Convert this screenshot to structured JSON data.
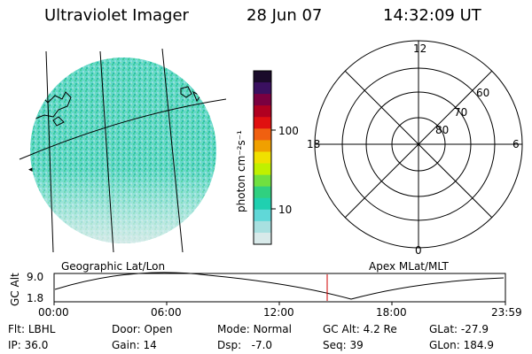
{
  "header": {
    "instrument": "Ultraviolet Imager",
    "date": "28 Jun 07",
    "time": "14:32:09 UT"
  },
  "colorbar": {
    "unit_label": "photon cm⁻²s⁻¹",
    "ticks": [
      "100",
      "10"
    ],
    "colors": [
      "#1a0a2a",
      "#3a1060",
      "#7a0040",
      "#b00020",
      "#e01010",
      "#f06010",
      "#f0a000",
      "#f0e000",
      "#c0f000",
      "#70e040",
      "#30d080",
      "#20d0b0",
      "#60d8d8",
      "#a8e0e0",
      "#d8eaea"
    ]
  },
  "left_map": {
    "label": "Geographic Lat/Lon",
    "fill_color": "#66d8c8",
    "marker": "◂"
  },
  "right_polar": {
    "label": "Apex MLat/MLT",
    "mlt_labels": {
      "top": "12",
      "left": "18",
      "right": "6",
      "bottom": "0"
    },
    "lat_labels": [
      "60",
      "70",
      "80"
    ]
  },
  "timeline": {
    "ylabel": "GC Alt",
    "y_ticks": [
      "9.0",
      "1.8"
    ],
    "x_ticks": [
      "00:00",
      "06:00",
      "12:00",
      "18:00",
      "23:59"
    ],
    "current_time_color": "#d00000"
  },
  "footer": {
    "rows": [
      [
        {
          "label": "Flt:",
          "value": "LBHL"
        },
        {
          "label": "Door:",
          "value": "Open"
        },
        {
          "label": "Mode:",
          "value": "Normal"
        },
        {
          "label": "GC Alt:",
          "value": "4.2 Re"
        },
        {
          "label": "GLat:",
          "value": "-27.9"
        }
      ],
      [
        {
          "label": "IP:",
          "value": "36.0"
        },
        {
          "label": "Gain:",
          "value": "14"
        },
        {
          "label": "Dsp:",
          "value": "  -7.0"
        },
        {
          "label": "Seq:",
          "value": "39"
        },
        {
          "label": "GLon:",
          "value": "184.9"
        }
      ]
    ]
  }
}
